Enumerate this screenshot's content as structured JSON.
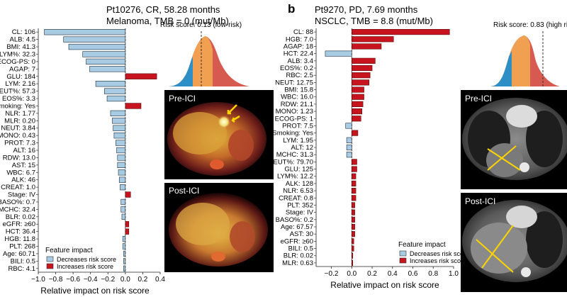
{
  "panel_b_label": "b",
  "legend": {
    "title": "Feature impact",
    "decrease": "Decreases risk score",
    "increase": "Increases risk score",
    "colors": {
      "decrease": "#a8cbe4",
      "increase": "#c8141e"
    }
  },
  "xlabel": "Relative impact on risk score",
  "chart_data": [
    {
      "type": "bar",
      "title": "Pt10276, CR, 58.28 months",
      "subtitle": "Melanoma, TMB = 0 (mut/Mb)",
      "risk_label": "Risk score: 0.13 (low-risk)",
      "risk_score": 0.13,
      "image_labels": [
        "Pre-ICI",
        "Post-ICI"
      ],
      "xlabel": "Relative impact on risk score",
      "xlim": [
        -1.0,
        0.4
      ],
      "ticks": [
        -1.0,
        -0.8,
        -0.6,
        -0.4,
        -0.2,
        0.0,
        0.2,
        0.4
      ],
      "tick_labels": [
        "−1.0",
        "−0.8",
        "−0.6",
        "−0.4",
        "−0.2",
        "0.0",
        "0.2",
        "0.4"
      ],
      "categories": [
        "CL: 106",
        "ALB: 4.5",
        "BMI: 41.3",
        "LYM%: 32.3",
        "ECOG-PS: 0",
        "AGAP: 7",
        "GLU: 184",
        "LYM: 2.16",
        "NEUT%: 57.3",
        "EOS%: 3.3",
        "Smoking: Yes",
        "NLR: 1.77",
        "MLR: 0.20",
        "NEUT: 3.84",
        "MONO: 0.43",
        "PROT: 7.3",
        "ALT: 16",
        "RDW: 13.0",
        "AST: 15",
        "WBC: 6.7",
        "ALK: 46",
        "CREAT: 1.0",
        "Stage: IV",
        "BASO%: 0.7",
        "MCHC: 32.4",
        "BLR: 0.02",
        "eGFR: ≥60",
        "HCT: 36.4",
        "HGB: 11.8",
        "PLT: 268",
        "Age: 60.71",
        "BILI: 0.5",
        "RBC: 4.1"
      ],
      "values": [
        -0.93,
        -0.71,
        -0.65,
        -0.49,
        -0.45,
        -0.41,
        0.36,
        -0.34,
        -0.24,
        -0.21,
        0.18,
        -0.17,
        -0.15,
        -0.14,
        -0.13,
        -0.11,
        -0.1,
        -0.09,
        -0.09,
        -0.08,
        -0.07,
        -0.06,
        0.06,
        -0.05,
        -0.05,
        -0.04,
        0.04,
        0.04,
        -0.03,
        -0.03,
        -0.02,
        -0.02,
        -0.02
      ]
    },
    {
      "type": "bar",
      "title": "Pt9270, PD, 7.69 months",
      "subtitle": "NSCLC, TMB = 8.8 (mut/Mb)",
      "risk_label": "Risk score: 0.83 (high risk)",
      "risk_score": 0.83,
      "image_labels": [
        "Pre-ICI",
        "Post-ICI"
      ],
      "xlabel": "Relative impact on risk score",
      "xlim": [
        -0.35,
        1.0
      ],
      "ticks": [
        -0.2,
        0.0,
        0.2,
        0.4,
        0.6,
        0.8,
        1.0
      ],
      "tick_labels": [
        "−0.2",
        "0.0",
        "0.2",
        "0.4",
        "0.6",
        "0.8",
        "1.0"
      ],
      "categories": [
        "CL: 88",
        "HGB: 7.0",
        "AGAP: 18",
        "HCT: 22.4",
        "ALB: 3.4",
        "EOS%: 0.2",
        "RBC: 2.5",
        "NEUT: 12.75",
        "BMI: 15.8",
        "WBC: 16.0",
        "RDW: 21.1",
        "MONO: 1.23",
        "ECOG-PS: 1",
        "PROT: 7.5",
        "Smoking: Yes",
        "LYM: 1.95",
        "ALT: 12",
        "MCHC: 31.3",
        "NEUT%: 79.70",
        "GLU: 125",
        "LYM%: 12.2",
        "ALK: 128",
        "NLR: 6.53",
        "CREAT: 0.8",
        "PLT: 352",
        "Stage: IV",
        "BASO%: 0.2",
        "Age: 67.57",
        "AST: 30",
        "eGFR: ≥60",
        "BILI: 0.5",
        "BLR: 0.02",
        "MLR: 0.63"
      ],
      "values": [
        0.96,
        0.41,
        0.29,
        -0.26,
        0.23,
        0.2,
        0.18,
        0.17,
        0.12,
        0.12,
        0.11,
        0.1,
        0.09,
        -0.06,
        0.06,
        -0.05,
        -0.05,
        -0.05,
        0.05,
        0.05,
        0.04,
        0.04,
        0.04,
        0.04,
        0.03,
        0.03,
        0.03,
        0.03,
        0.03,
        0.02,
        0.02,
        0.01,
        0.01
      ]
    }
  ]
}
